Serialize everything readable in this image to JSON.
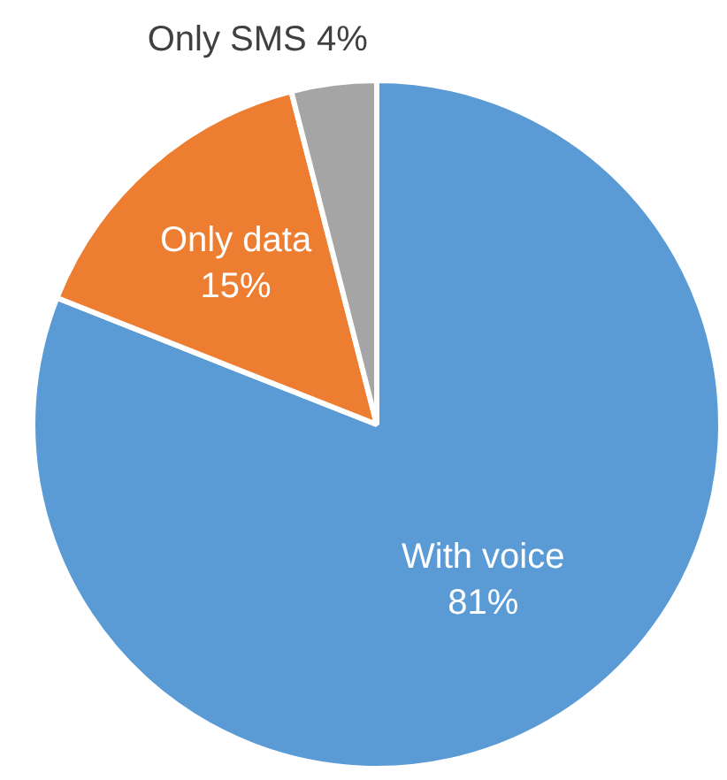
{
  "chart_data": {
    "type": "pie",
    "categories": [
      "With voice",
      "Only data",
      "Only SMS"
    ],
    "values": [
      81,
      15,
      4
    ],
    "value_labels": [
      "81%",
      "15%",
      "4%"
    ],
    "colors": [
      "#5b9bd5",
      "#ed7d31",
      "#a5a5a5"
    ],
    "legend": false
  }
}
